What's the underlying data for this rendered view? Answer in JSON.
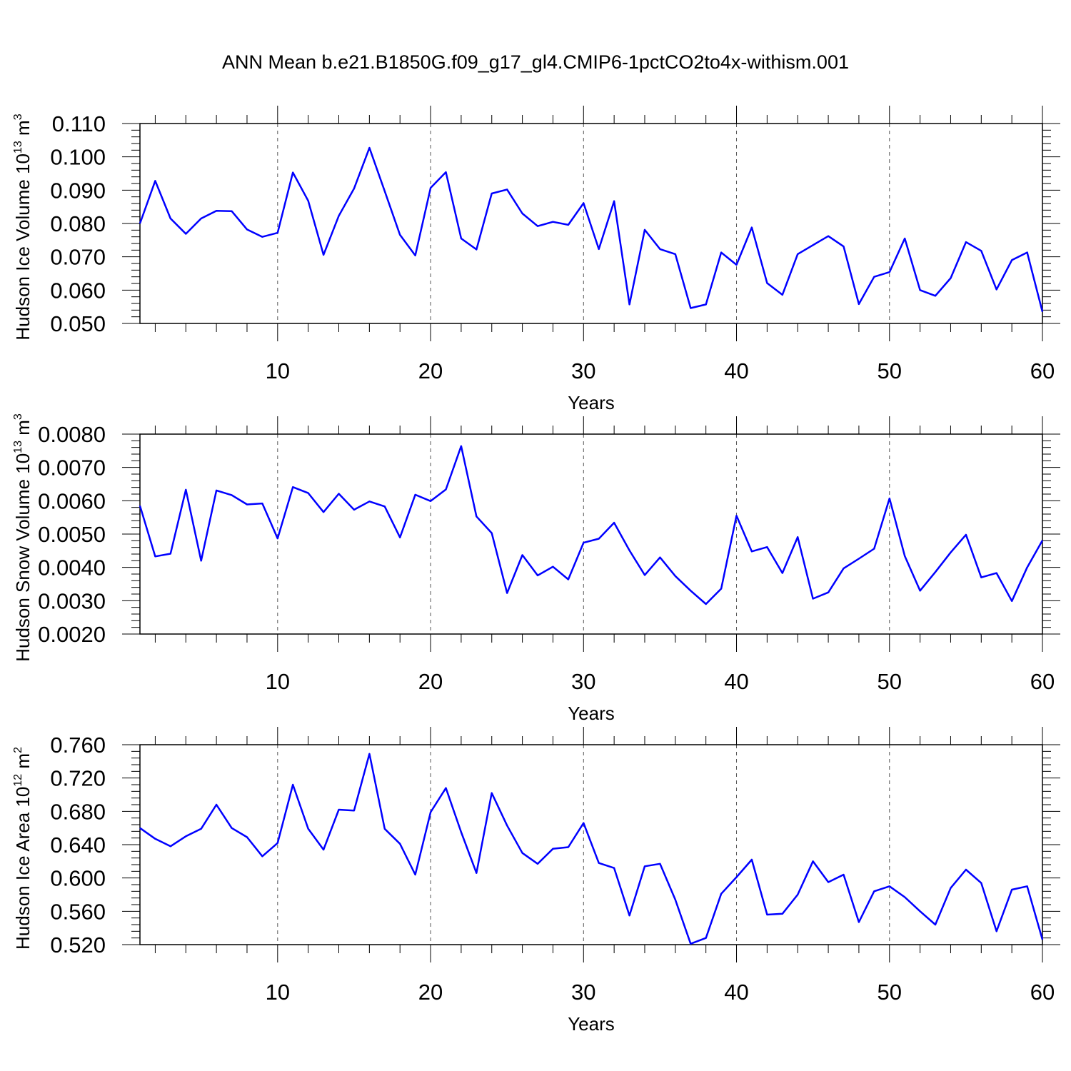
{
  "title": "ANN Mean b.e21.B1850G.f09_g17_gl4.CMIP6-1pctCO2to4x-withism.001",
  "colors": {
    "line": "#0000ff",
    "axis": "#000000",
    "grid": "#555555"
  },
  "chart_data": [
    {
      "type": "line",
      "name": "ice-volume",
      "ylabel": "Hudson Ice Volume",
      "yunit_base": "10",
      "yunit_exp": "13",
      "yunit_tail": "m",
      "yunit_tail_exp": "3",
      "xlabel": "Years",
      "xlim": [
        1,
        60
      ],
      "ylim": [
        0.05,
        0.11
      ],
      "xticks": [
        10,
        20,
        30,
        40,
        50,
        60
      ],
      "yticks": [
        "0.050",
        "0.060",
        "0.070",
        "0.080",
        "0.090",
        "0.100",
        "0.110"
      ],
      "ytick_values": [
        0.05,
        0.06,
        0.07,
        0.08,
        0.09,
        0.1,
        0.11
      ],
      "gridlines_x": [
        10,
        20,
        30,
        40,
        50
      ],
      "values": [
        0.08,
        0.0928,
        0.0815,
        0.0769,
        0.0815,
        0.0838,
        0.0837,
        0.0782,
        0.076,
        0.0772,
        0.0953,
        0.0868,
        0.0706,
        0.0823,
        0.0905,
        0.1027,
        0.0897,
        0.0766,
        0.0704,
        0.0907,
        0.0954,
        0.0755,
        0.0722,
        0.089,
        0.0902,
        0.083,
        0.0792,
        0.0805,
        0.0796,
        0.0861,
        0.0723,
        0.0867,
        0.0557,
        0.0781,
        0.0723,
        0.0708,
        0.0546,
        0.0557,
        0.0713,
        0.0676,
        0.0788,
        0.0621,
        0.0586,
        0.0708,
        0.0735,
        0.0762,
        0.0731,
        0.0558,
        0.064,
        0.0654,
        0.0755,
        0.06,
        0.0583,
        0.0636,
        0.0744,
        0.0718,
        0.0602,
        0.069,
        0.0713,
        0.0535
      ]
    },
    {
      "type": "line",
      "name": "snow-volume",
      "ylabel": "Hudson Snow Volume",
      "yunit_base": "10",
      "yunit_exp": "13",
      "yunit_tail": "m",
      "yunit_tail_exp": "3",
      "xlabel": "Years",
      "xlim": [
        1,
        60
      ],
      "ylim": [
        0.002,
        0.008
      ],
      "xticks": [
        10,
        20,
        30,
        40,
        50,
        60
      ],
      "yticks": [
        "0.0020",
        "0.0030",
        "0.0040",
        "0.0050",
        "0.0060",
        "0.0070",
        "0.0080"
      ],
      "ytick_values": [
        0.002,
        0.003,
        0.004,
        0.005,
        0.006,
        0.007,
        0.008
      ],
      "gridlines_x": [
        10,
        20,
        30,
        40,
        50
      ],
      "values": [
        0.00585,
        0.00433,
        0.00441,
        0.00633,
        0.0042,
        0.00631,
        0.00617,
        0.00589,
        0.00592,
        0.00487,
        0.00641,
        0.00623,
        0.00566,
        0.00621,
        0.00573,
        0.00598,
        0.00583,
        0.0049,
        0.00618,
        0.00599,
        0.00634,
        0.00764,
        0.00553,
        0.00503,
        0.00323,
        0.00437,
        0.00376,
        0.00402,
        0.00364,
        0.00474,
        0.00486,
        0.00534,
        0.00451,
        0.00377,
        0.0043,
        0.00374,
        0.0033,
        0.0029,
        0.00336,
        0.00555,
        0.00448,
        0.00461,
        0.00383,
        0.00491,
        0.00306,
        0.00325,
        0.00397,
        0.00426,
        0.00456,
        0.00607,
        0.00434,
        0.0033,
        0.00386,
        0.00445,
        0.00498,
        0.0037,
        0.00383,
        0.00299,
        0.004,
        0.00481
      ]
    },
    {
      "type": "line",
      "name": "ice-area",
      "ylabel": "Hudson Ice Area",
      "yunit_base": "10",
      "yunit_exp": "12",
      "yunit_tail": "m",
      "yunit_tail_exp": "2",
      "xlabel": "Years",
      "xlim": [
        1,
        60
      ],
      "ylim": [
        0.52,
        0.76
      ],
      "xticks": [
        10,
        20,
        30,
        40,
        50,
        60
      ],
      "yticks": [
        "0.520",
        "0.560",
        "0.600",
        "0.640",
        "0.680",
        "0.720",
        "0.760"
      ],
      "ytick_values": [
        0.52,
        0.56,
        0.6,
        0.64,
        0.68,
        0.72,
        0.76
      ],
      "gridlines_x": [
        10,
        20,
        30,
        40,
        50
      ],
      "values": [
        0.66,
        0.647,
        0.638,
        0.65,
        0.659,
        0.688,
        0.66,
        0.649,
        0.626,
        0.642,
        0.712,
        0.659,
        0.634,
        0.682,
        0.681,
        0.749,
        0.659,
        0.641,
        0.604,
        0.679,
        0.708,
        0.655,
        0.606,
        0.702,
        0.663,
        0.63,
        0.617,
        0.635,
        0.637,
        0.666,
        0.618,
        0.612,
        0.555,
        0.614,
        0.617,
        0.574,
        0.521,
        0.528,
        0.581,
        0.601,
        0.622,
        0.556,
        0.557,
        0.58,
        0.62,
        0.595,
        0.604,
        0.547,
        0.584,
        0.59,
        0.577,
        0.56,
        0.544,
        0.588,
        0.61,
        0.594,
        0.536,
        0.586,
        0.59,
        0.526
      ]
    }
  ]
}
